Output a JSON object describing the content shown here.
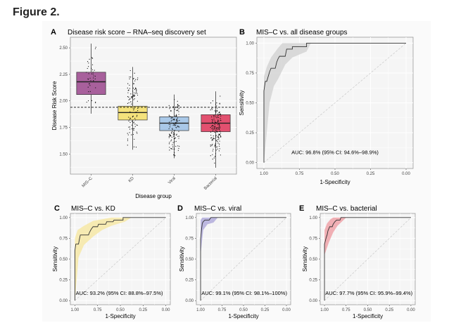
{
  "figure_title": "Figure 2.",
  "chart_data": [
    {
      "panel": "A",
      "type": "box",
      "title": "Disease risk score – RNA–seq discovery set",
      "xlabel": "Disease group",
      "ylabel": "Disease Risk Score",
      "categories": [
        "MIS–C",
        "KD",
        "Viral",
        "Bacterial"
      ],
      "colors": [
        "#a8609c",
        "#f4e27c",
        "#a9c8e8",
        "#e2506f"
      ],
      "boxes": [
        {
          "q1": 2.06,
          "median": 2.18,
          "q3": 2.27,
          "min": 1.88,
          "max": 2.54
        },
        {
          "q1": 1.82,
          "median": 1.89,
          "q3": 1.95,
          "min": 1.54,
          "max": 2.32
        },
        {
          "q1": 1.72,
          "median": 1.79,
          "q3": 1.85,
          "min": 1.46,
          "max": 2.06
        },
        {
          "q1": 1.71,
          "median": 1.79,
          "q3": 1.87,
          "min": 1.37,
          "max": 2.09
        }
      ],
      "threshold": 1.94,
      "yticks": [
        "1.50",
        "1.75",
        "2.00",
        "2.25",
        "2.50"
      ],
      "ylim": [
        1.31,
        2.6
      ],
      "grid": true
    },
    {
      "panel": "B",
      "type": "line",
      "title": "MIS–C vs. all disease groups",
      "xlabel": "1-Specificity",
      "ylabel": "Sensitivity",
      "auc_label": "AUC: 96.8% (95% CI: 94.6%–98.9%)",
      "ci_color": "#d4d4d4",
      "xticks": [
        "1.00",
        "0.75",
        "0.50",
        "0.25",
        "0.00"
      ],
      "yticks": [
        "0.00",
        "0.25",
        "0.50",
        "0.75",
        "1.00"
      ],
      "curve": [
        [
          1,
          0
        ],
        [
          1,
          0.6
        ],
        [
          0.99,
          0.68
        ],
        [
          0.98,
          0.68
        ],
        [
          0.97,
          0.72
        ],
        [
          0.96,
          0.76
        ],
        [
          0.95,
          0.79
        ],
        [
          0.92,
          0.79
        ],
        [
          0.91,
          0.84
        ],
        [
          0.9,
          0.87
        ],
        [
          0.89,
          0.89
        ],
        [
          0.85,
          0.89
        ],
        [
          0.84,
          0.95
        ],
        [
          0.8,
          0.95
        ],
        [
          0.8,
          0.97
        ],
        [
          0.7,
          0.97
        ],
        [
          0.7,
          1
        ],
        [
          0,
          1
        ]
      ],
      "ci_upper": [
        [
          1,
          0.72
        ],
        [
          0.98,
          0.8
        ],
        [
          0.95,
          0.88
        ],
        [
          0.9,
          0.96
        ],
        [
          0.87,
          1
        ],
        [
          0,
          1
        ]
      ],
      "ci_lower": [
        [
          0,
          1
        ],
        [
          0.67,
          1
        ],
        [
          0.7,
          0.93
        ],
        [
          0.8,
          0.88
        ],
        [
          0.85,
          0.82
        ],
        [
          0.9,
          0.7
        ],
        [
          0.93,
          0.64
        ],
        [
          0.96,
          0.5
        ],
        [
          1,
          0
        ]
      ],
      "grid": true
    },
    {
      "panel": "C",
      "type": "line",
      "title": "MIS–C vs. KD",
      "xlabel": "1-Specificity",
      "ylabel": "Sensitivity",
      "auc_label": "AUC: 93.2% (95% CI: 88.8%–97.5%)",
      "ci_color": "#f6e7a6",
      "xticks": [
        "1.00",
        "0.75",
        "0.50",
        "0.25",
        "0.00"
      ],
      "yticks": [
        "0.00",
        "0.25",
        "0.50",
        "0.75",
        "1.00"
      ],
      "curve": [
        [
          1,
          0
        ],
        [
          1,
          0.6
        ],
        [
          0.99,
          0.68
        ],
        [
          0.96,
          0.68
        ],
        [
          0.95,
          0.74
        ],
        [
          0.94,
          0.79
        ],
        [
          0.85,
          0.79
        ],
        [
          0.84,
          0.82
        ],
        [
          0.82,
          0.86
        ],
        [
          0.8,
          0.89
        ],
        [
          0.75,
          0.89
        ],
        [
          0.74,
          0.92
        ],
        [
          0.66,
          0.92
        ],
        [
          0.65,
          0.95
        ],
        [
          0.58,
          0.95
        ],
        [
          0.57,
          0.97
        ],
        [
          0.47,
          0.97
        ],
        [
          0.47,
          1
        ],
        [
          0,
          1
        ]
      ],
      "ci_upper": [
        [
          1,
          0.75
        ],
        [
          0.97,
          0.85
        ],
        [
          0.9,
          0.9
        ],
        [
          0.8,
          0.96
        ],
        [
          0.7,
          0.98
        ],
        [
          0.6,
          1
        ],
        [
          0,
          1
        ]
      ],
      "ci_lower": [
        [
          0,
          1
        ],
        [
          0.38,
          1
        ],
        [
          0.45,
          0.95
        ],
        [
          0.6,
          0.9
        ],
        [
          0.7,
          0.85
        ],
        [
          0.8,
          0.77
        ],
        [
          0.9,
          0.67
        ],
        [
          0.96,
          0.52
        ],
        [
          1,
          0
        ]
      ],
      "grid": true
    },
    {
      "panel": "D",
      "type": "line",
      "title": "MIS–C vs. viral",
      "xlabel": "1-Specificity",
      "ylabel": "Sensitivity",
      "auc_label": "AUC: 99.1% (95% CI: 98.1%–100%)",
      "ci_color": "#b1acda",
      "xticks": [
        "1.00",
        "0.75",
        "0.50",
        "0.25",
        "0.00"
      ],
      "yticks": [
        "0.00",
        "0.25",
        "0.50",
        "0.75",
        "1.00"
      ],
      "curve": [
        [
          1,
          0
        ],
        [
          1,
          0.74
        ],
        [
          0.99,
          0.85
        ],
        [
          0.98,
          0.93
        ],
        [
          0.97,
          0.95
        ],
        [
          0.95,
          0.97
        ],
        [
          0.9,
          0.97
        ],
        [
          0.88,
          1
        ],
        [
          0,
          1
        ]
      ],
      "ci_upper": [
        [
          1,
          0.97
        ],
        [
          0.98,
          1
        ],
        [
          0,
          1
        ]
      ],
      "ci_lower": [
        [
          0,
          1
        ],
        [
          0.8,
          1
        ],
        [
          0.85,
          0.94
        ],
        [
          0.92,
          0.92
        ],
        [
          0.97,
          0.85
        ],
        [
          1,
          0.55
        ]
      ],
      "grid": true
    },
    {
      "panel": "E",
      "type": "line",
      "title": "MIS–C vs. bacterial",
      "xlabel": "1-Specificity",
      "ylabel": "Sensitivity",
      "auc_label": "AUC: 97.7% (95% CI: 95.9%–99.4%)",
      "ci_color": "#eea2a8",
      "xticks": [
        "1.00",
        "0.75",
        "0.50",
        "0.25",
        "0.00"
      ],
      "yticks": [
        "0.00",
        "0.25",
        "0.50",
        "0.75",
        "1.00"
      ],
      "curve": [
        [
          1,
          0
        ],
        [
          1,
          0.68
        ],
        [
          0.99,
          0.72
        ],
        [
          0.98,
          0.76
        ],
        [
          0.97,
          0.79
        ],
        [
          0.96,
          0.84
        ],
        [
          0.94,
          0.89
        ],
        [
          0.91,
          0.89
        ],
        [
          0.9,
          0.92
        ],
        [
          0.88,
          0.95
        ],
        [
          0.86,
          0.97
        ],
        [
          0.82,
          0.97
        ],
        [
          0.81,
          1
        ],
        [
          0,
          1
        ]
      ],
      "ci_upper": [
        [
          1,
          0.85
        ],
        [
          0.97,
          0.93
        ],
        [
          0.93,
          0.98
        ],
        [
          0.9,
          1
        ],
        [
          0,
          1
        ]
      ],
      "ci_lower": [
        [
          0,
          1
        ],
        [
          0.75,
          1
        ],
        [
          0.8,
          0.95
        ],
        [
          0.85,
          0.9
        ],
        [
          0.9,
          0.82
        ],
        [
          0.95,
          0.7
        ],
        [
          1,
          0.55
        ]
      ],
      "grid": true
    }
  ]
}
